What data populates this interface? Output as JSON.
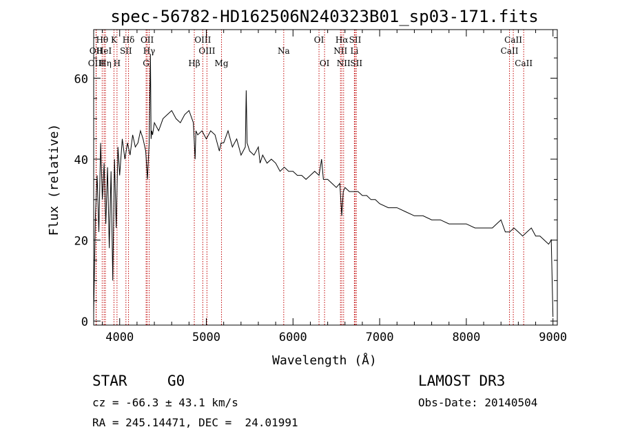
{
  "chart_data": {
    "type": "line",
    "title": "spec-56782-HD162506N240323B01_sp03-171.fits",
    "xlabel": "Wavelength (Å)",
    "ylabel": "Flux (relative)",
    "xlim": [
      3700,
      9050
    ],
    "ylim": [
      -1,
      72
    ],
    "xticks": [
      4000,
      5000,
      6000,
      7000,
      8000,
      9000
    ],
    "yticks": [
      0,
      20,
      40,
      60
    ],
    "series": [
      {
        "name": "spectrum",
        "x": [
          3700,
          3720,
          3740,
          3760,
          3780,
          3800,
          3820,
          3840,
          3860,
          3880,
          3900,
          3920,
          3940,
          3960,
          3980,
          4000,
          4030,
          4060,
          4090,
          4120,
          4150,
          4180,
          4210,
          4240,
          4270,
          4300,
          4320,
          4340,
          4355,
          4362,
          4370,
          4380,
          4400,
          4450,
          4500,
          4550,
          4600,
          4650,
          4700,
          4750,
          4800,
          4850,
          4870,
          4880,
          4900,
          4950,
          5000,
          5050,
          5100,
          5150,
          5170,
          5200,
          5250,
          5300,
          5350,
          5400,
          5450,
          5460,
          5470,
          5500,
          5550,
          5600,
          5620,
          5650,
          5700,
          5750,
          5800,
          5850,
          5900,
          5950,
          6000,
          6050,
          6100,
          6150,
          6200,
          6250,
          6300,
          6330,
          6350,
          6400,
          6450,
          6500,
          6540,
          6563,
          6580,
          6600,
          6650,
          6700,
          6750,
          6800,
          6850,
          6900,
          6950,
          7000,
          7100,
          7200,
          7300,
          7400,
          7500,
          7600,
          7700,
          7800,
          7900,
          8000,
          8100,
          8200,
          8300,
          8350,
          8400,
          8450,
          8500,
          8550,
          8600,
          8650,
          8700,
          8750,
          8800,
          8850,
          8900,
          8950,
          8980,
          9000
        ],
        "values": [
          2,
          26,
          36,
          22,
          44,
          30,
          39,
          24,
          38,
          18,
          37,
          10,
          40,
          23,
          43,
          36,
          45,
          40,
          44,
          41,
          46,
          43,
          44,
          47,
          45,
          42,
          35,
          44,
          66,
          45,
          47,
          46,
          49,
          47,
          50,
          51,
          52,
          50,
          49,
          51,
          52,
          49,
          40,
          47,
          46,
          47,
          45,
          47,
          46,
          42,
          44,
          44,
          47,
          43,
          45,
          41,
          43,
          57,
          44,
          42,
          41,
          43,
          39,
          41,
          39,
          40,
          39,
          37,
          38,
          37,
          37,
          36,
          36,
          35,
          36,
          37,
          36,
          40,
          35,
          35,
          34,
          33,
          34,
          26,
          32,
          33,
          32,
          32,
          32,
          31,
          31,
          30,
          30,
          29,
          28,
          28,
          27,
          26,
          26,
          25,
          25,
          24,
          24,
          24,
          23,
          23,
          23,
          24,
          25,
          22,
          22,
          23,
          22,
          21,
          22,
          23,
          21,
          21,
          20,
          19,
          20,
          1
        ]
      }
    ],
    "line_marks": [
      {
        "label": "Hθ",
        "x": 3798,
        "label_row": 1
      },
      {
        "label": "OII",
        "x": 3727,
        "label_row": 2
      },
      {
        "label": "OIII",
        "x": 3730,
        "label_row": 3
      },
      {
        "label": "HeI",
        "x": 3820,
        "label_row": 2
      },
      {
        "label": "Hη",
        "x": 3835,
        "label_row": 3
      },
      {
        "label": "K",
        "x": 3934,
        "label_row": 1
      },
      {
        "label": "H",
        "x": 3969,
        "label_row": 3
      },
      {
        "label": "Hδ",
        "x": 4102,
        "label_row": 1
      },
      {
        "label": "SII",
        "x": 4072,
        "label_row": 2
      },
      {
        "label": "OII",
        "x": 4317,
        "label_row": 1
      },
      {
        "label": "Hγ",
        "x": 4340,
        "label_row": 2
      },
      {
        "label": "G",
        "x": 4305,
        "label_row": 3
      },
      {
        "label": "Hβ",
        "x": 4861,
        "label_row": 3
      },
      {
        "label": "OIII",
        "x": 4959,
        "label_row": 1
      },
      {
        "label": "OIII",
        "x": 5007,
        "label_row": 2
      },
      {
        "label": "Mg",
        "x": 5175,
        "label_row": 3
      },
      {
        "label": "Na",
        "x": 5893,
        "label_row": 2
      },
      {
        "label": "OI",
        "x": 6300,
        "label_row": 1
      },
      {
        "label": "OI",
        "x": 6364,
        "label_row": 3
      },
      {
        "label": "Hα",
        "x": 6563,
        "label_row": 1
      },
      {
        "label": "NII",
        "x": 6548,
        "label_row": 2
      },
      {
        "label": "NII",
        "x": 6584,
        "label_row": 3
      },
      {
        "label": "SII",
        "x": 6717,
        "label_row": 1
      },
      {
        "label": "Li",
        "x": 6708,
        "label_row": 2
      },
      {
        "label": "SII",
        "x": 6731,
        "label_row": 3
      },
      {
        "label": "CaII",
        "x": 8542,
        "label_row": 1
      },
      {
        "label": "CaII",
        "x": 8498,
        "label_row": 2
      },
      {
        "label": "CaII",
        "x": 8662,
        "label_row": 3
      }
    ]
  },
  "info": {
    "object_class": "STAR",
    "subclass": "G0",
    "survey": "LAMOST DR3",
    "redshift_line": "cz = -66.3 ± 43.1 km/s",
    "obs_date_line": "Obs-Date: 20140504",
    "coords_line": "RA = 245.14471, DEC =  24.01991"
  }
}
